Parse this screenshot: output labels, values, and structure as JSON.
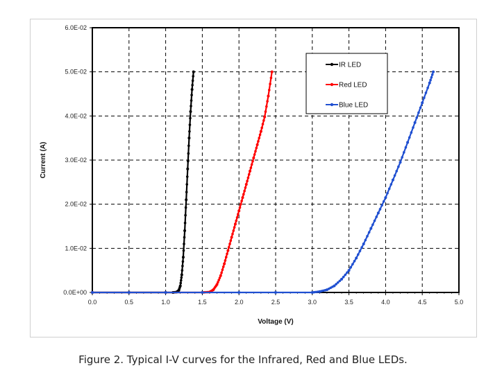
{
  "caption": "Figure 2.  Typical I-V curves for the Infrared, Red and Blue LEDs.",
  "chart_data": {
    "type": "line",
    "xlabel": "Voltage (V)",
    "ylabel": "Current (A)",
    "xlim": [
      0,
      5
    ],
    "ylim": [
      0,
      0.06
    ],
    "x_ticks": [
      "0.0",
      "0.5",
      "1.0",
      "1.5",
      "2.0",
      "2.5",
      "3.0",
      "3.5",
      "4.0",
      "4.5",
      "5.0"
    ],
    "y_ticks": [
      "0.0E+00",
      "1.0E-02",
      "2.0E-02",
      "3.0E-02",
      "4.0E-02",
      "5.0E-02",
      "6.0E-02"
    ],
    "grid": true,
    "legend_position": "top-right",
    "series": [
      {
        "name": "IR LED",
        "color": "#000000",
        "x": [
          0.0,
          0.5,
          1.0,
          1.1,
          1.15,
          1.18,
          1.2,
          1.22,
          1.24,
          1.26,
          1.28,
          1.3,
          1.32,
          1.34,
          1.36,
          1.38
        ],
        "y": [
          0.0,
          0.0,
          0.0,
          0.0,
          0.0001,
          0.0005,
          0.0015,
          0.004,
          0.008,
          0.014,
          0.021,
          0.028,
          0.035,
          0.041,
          0.046,
          0.05
        ]
      },
      {
        "name": "Red LED",
        "color": "#ff0000",
        "x": [
          0.0,
          0.5,
          1.0,
          1.5,
          1.6,
          1.65,
          1.7,
          1.75,
          1.8,
          1.85,
          1.9,
          1.95,
          2.0,
          2.05,
          2.1,
          2.15,
          2.2,
          2.25,
          2.3,
          2.35,
          2.4,
          2.45
        ],
        "y": [
          0.0,
          0.0,
          0.0,
          0.0,
          0.0001,
          0.0006,
          0.0018,
          0.0038,
          0.0065,
          0.0095,
          0.0125,
          0.0155,
          0.0185,
          0.0215,
          0.0245,
          0.0275,
          0.0305,
          0.0335,
          0.0365,
          0.0398,
          0.0445,
          0.05
        ]
      },
      {
        "name": "Blue LED",
        "color": "#1f4fd1",
        "x": [
          0.0,
          0.5,
          1.0,
          1.5,
          2.0,
          2.5,
          3.0,
          3.1,
          3.2,
          3.3,
          3.4,
          3.5,
          3.6,
          3.7,
          3.8,
          3.9,
          4.0,
          4.1,
          4.2,
          4.3,
          4.4,
          4.5,
          4.6,
          4.65
        ],
        "y": [
          0.0,
          0.0,
          0.0,
          0.0,
          0.0,
          0.0,
          0.0,
          0.0002,
          0.0006,
          0.0015,
          0.003,
          0.005,
          0.0078,
          0.011,
          0.0145,
          0.018,
          0.0215,
          0.0255,
          0.0295,
          0.034,
          0.0385,
          0.043,
          0.0475,
          0.05
        ]
      }
    ]
  }
}
